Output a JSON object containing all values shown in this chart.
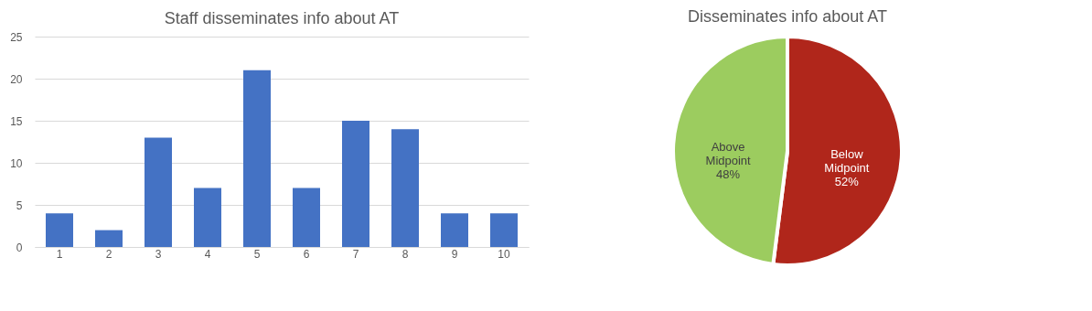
{
  "chart_data": [
    {
      "type": "bar",
      "title": "Staff disseminates info about AT",
      "categories": [
        "1",
        "2",
        "3",
        "4",
        "5",
        "6",
        "7",
        "8",
        "9",
        "10"
      ],
      "values": [
        4,
        2,
        13,
        7,
        21,
        7,
        15,
        14,
        4,
        4
      ],
      "color": "#4472c4",
      "ylim": [
        0,
        25
      ],
      "yticks": [
        0,
        5,
        10,
        15,
        20,
        25
      ],
      "grid": "y"
    },
    {
      "type": "pie",
      "title": "Disseminates info about AT",
      "categories": [
        "Below Midpoint",
        "Above Midpoint"
      ],
      "values": [
        52,
        48
      ],
      "colors": [
        "#b0261b",
        "#9ccc5f"
      ],
      "value_labels": [
        "52%",
        "48%"
      ]
    }
  ]
}
